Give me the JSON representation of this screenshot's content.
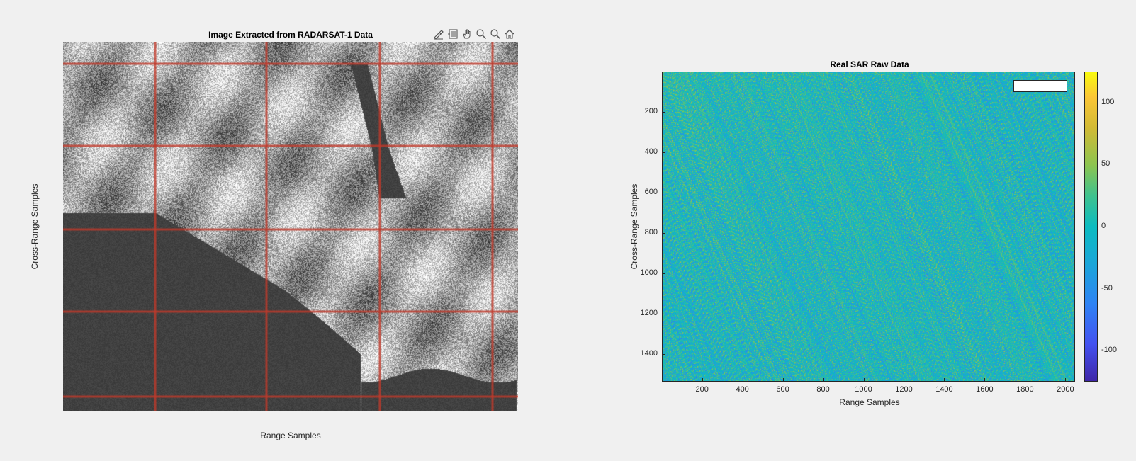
{
  "toolbar": {
    "icons": [
      "brush-icon",
      "datatip-icon",
      "pan-icon",
      "zoom-in-icon",
      "zoom-out-icon",
      "home-icon"
    ]
  },
  "chart_data": [
    {
      "type": "heatmap",
      "title": "Image Extracted from RADARSAT-1 Data",
      "xlabel": "Range Samples",
      "ylabel": "Cross-Range Samples",
      "colormap": "gray",
      "grid": true,
      "grid_color": "#c0392b",
      "ticks_visible": false
    },
    {
      "type": "heatmap",
      "title": "Real SAR Raw Data",
      "xlabel": "Range Samples",
      "ylabel": "Cross-Range Samples",
      "xlim": [
        1,
        2048
      ],
      "ylim": [
        1,
        1536
      ],
      "x_ticks": [
        200,
        400,
        600,
        800,
        1000,
        1200,
        1400,
        1600,
        1800,
        2000
      ],
      "y_ticks": [
        200,
        400,
        600,
        800,
        1000,
        1200,
        1400
      ],
      "colormap": "parula",
      "colorbar": {
        "range": [
          -125,
          125
        ],
        "ticks": [
          100,
          50,
          0,
          -50,
          -100
        ]
      },
      "legend_placement": "top-right",
      "grid": false
    }
  ]
}
